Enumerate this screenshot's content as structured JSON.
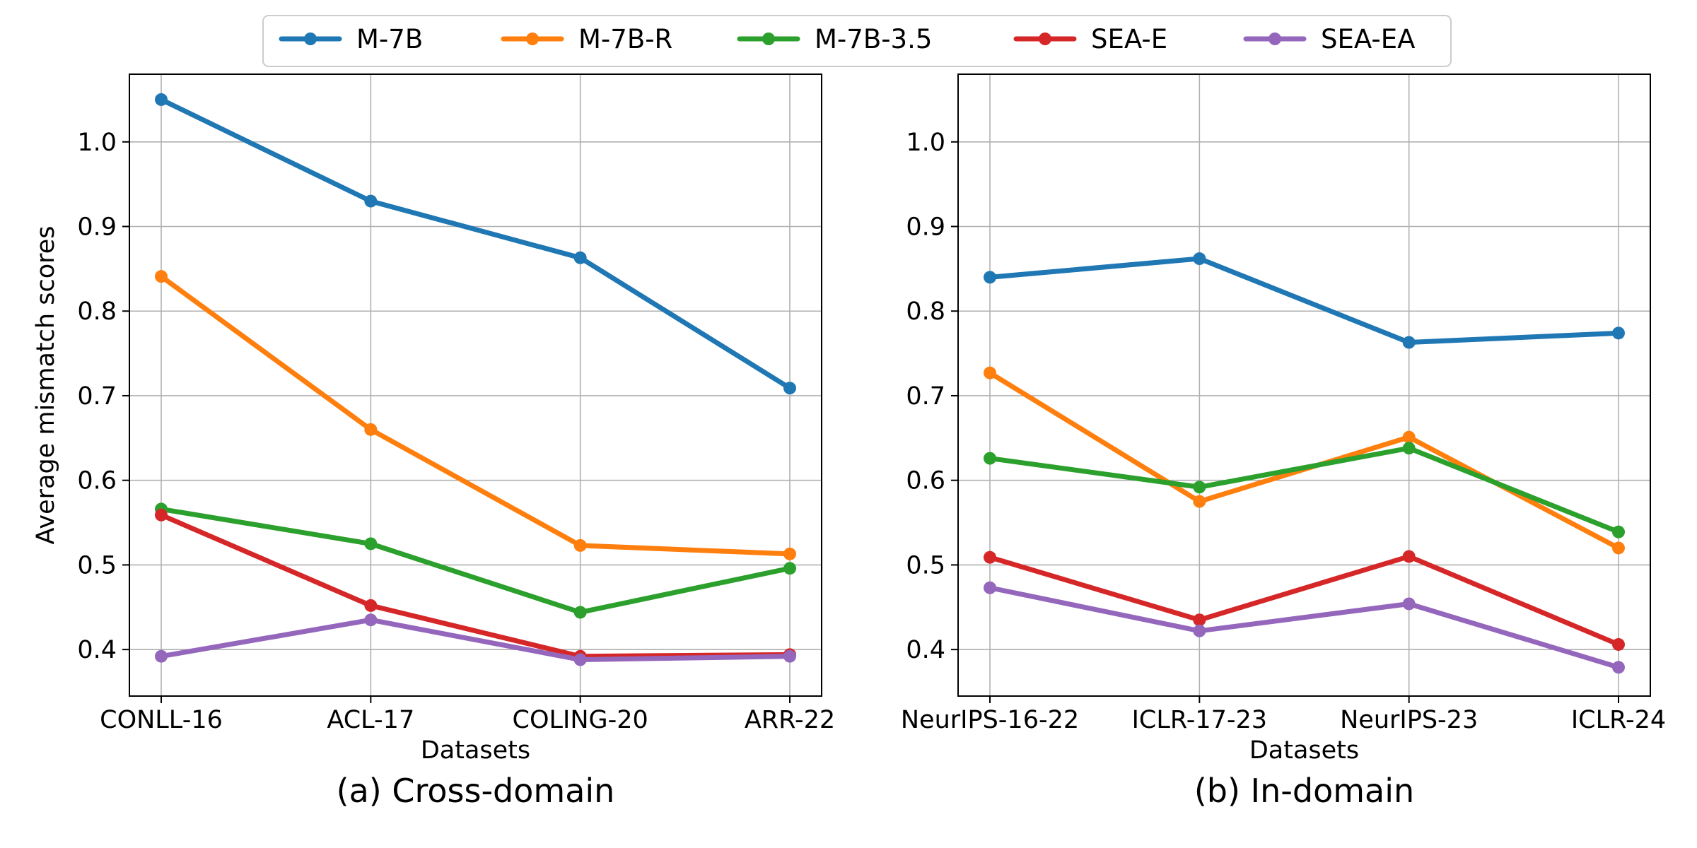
{
  "legend": {
    "items": [
      {
        "name": "M-7B",
        "color": "#1f77b4"
      },
      {
        "name": "M-7B-R",
        "color": "#ff7f0e"
      },
      {
        "name": "M-7B-3.5",
        "color": "#2ca02c"
      },
      {
        "name": "SEA-E",
        "color": "#d62728"
      },
      {
        "name": "SEA-EA",
        "color": "#9467bd"
      }
    ]
  },
  "chart_data": [
    {
      "type": "line",
      "caption": "(a) Cross-domain",
      "xlabel": "Datasets",
      "ylabel": "Average mismatch scores",
      "categories": [
        "CONLL-16",
        "ACL-17",
        "COLING-20",
        "ARR-22"
      ],
      "ylim": [
        0.345,
        1.08
      ],
      "yticks": [
        0.4,
        0.5,
        0.6,
        0.7,
        0.8,
        0.9,
        1.0
      ],
      "ytick_labels": [
        "0.4",
        "0.5",
        "0.6",
        "0.7",
        "0.8",
        "0.9",
        "1.0"
      ],
      "grid": true,
      "series": [
        {
          "name": "M-7B",
          "color": "#1f77b4",
          "values": [
            1.05,
            0.93,
            0.863,
            0.709
          ]
        },
        {
          "name": "M-7B-R",
          "color": "#ff7f0e",
          "values": [
            0.841,
            0.66,
            0.523,
            0.513
          ]
        },
        {
          "name": "M-7B-3.5",
          "color": "#2ca02c",
          "values": [
            0.566,
            0.525,
            0.444,
            0.496
          ]
        },
        {
          "name": "SEA-E",
          "color": "#d62728",
          "values": [
            0.559,
            0.452,
            0.392,
            0.394
          ]
        },
        {
          "name": "SEA-EA",
          "color": "#9467bd",
          "values": [
            0.392,
            0.435,
            0.388,
            0.392
          ]
        }
      ]
    },
    {
      "type": "line",
      "caption": "(b) In-domain",
      "xlabel": "Datasets",
      "ylabel": "",
      "categories": [
        "NeurIPS-16-22",
        "ICLR-17-23",
        "NeurIPS-23",
        "ICLR-24"
      ],
      "ylim": [
        0.345,
        1.08
      ],
      "yticks": [
        0.4,
        0.5,
        0.6,
        0.7,
        0.8,
        0.9,
        1.0
      ],
      "ytick_labels": [
        "0.4",
        "0.5",
        "0.6",
        "0.7",
        "0.8",
        "0.9",
        "1.0"
      ],
      "grid": true,
      "series": [
        {
          "name": "M-7B",
          "color": "#1f77b4",
          "values": [
            0.84,
            0.862,
            0.763,
            0.774
          ]
        },
        {
          "name": "M-7B-R",
          "color": "#ff7f0e",
          "values": [
            0.727,
            0.575,
            0.651,
            0.52
          ]
        },
        {
          "name": "M-7B-3.5",
          "color": "#2ca02c",
          "values": [
            0.626,
            0.592,
            0.638,
            0.539
          ]
        },
        {
          "name": "SEA-E",
          "color": "#d62728",
          "values": [
            0.509,
            0.435,
            0.51,
            0.406
          ]
        },
        {
          "name": "SEA-EA",
          "color": "#9467bd",
          "values": [
            0.473,
            0.422,
            0.454,
            0.379
          ]
        }
      ]
    }
  ]
}
